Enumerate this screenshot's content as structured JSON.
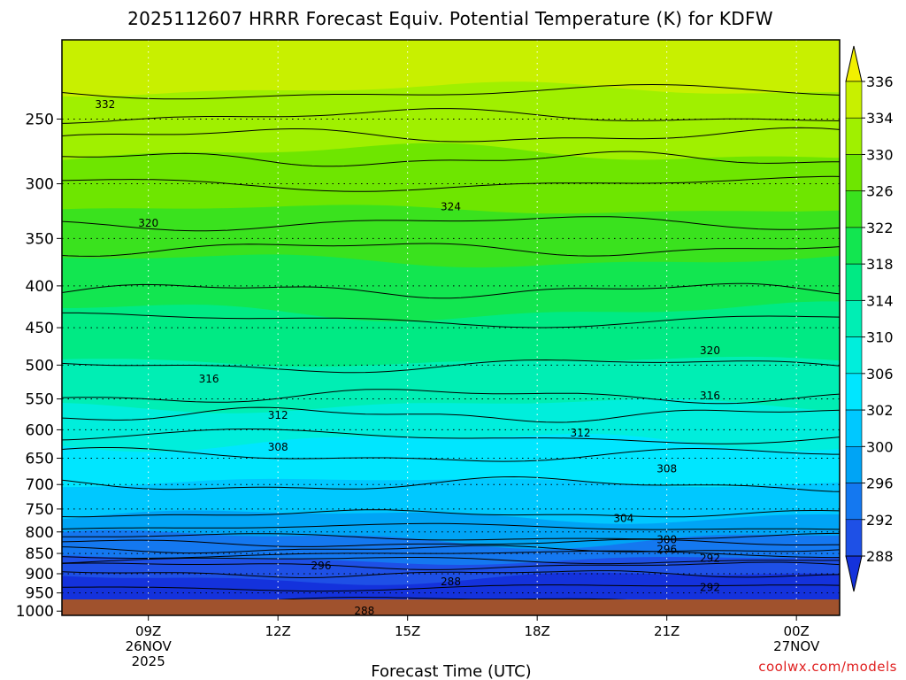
{
  "chart_data": {
    "type": "contour",
    "title": "2025112607 HRRR Forecast Equiv. Potential Temperature (K) for KDFW",
    "xlabel": "Forecast Time (UTC)",
    "ylabel": "",
    "credit": "coolwx.com/models",
    "y_axis": {
      "ticks": [
        250,
        300,
        350,
        400,
        450,
        500,
        550,
        600,
        650,
        700,
        750,
        800,
        850,
        900,
        950,
        1000
      ],
      "tick_labels": [
        "250",
        "300",
        "350",
        "400",
        "450",
        "500",
        "550",
        "600",
        "650",
        "700",
        "750",
        "800",
        "850",
        "900",
        "950",
        "1000"
      ],
      "top": 200,
      "bottom": 1012,
      "scale": "log",
      "reversed": true
    },
    "x_axis": {
      "range_hours": [
        7,
        25
      ],
      "ticks": [
        {
          "hour": 9,
          "lines": [
            "09Z",
            "26NOV",
            "2025"
          ]
        },
        {
          "hour": 12,
          "lines": [
            "12Z"
          ]
        },
        {
          "hour": 15,
          "lines": [
            "15Z"
          ]
        },
        {
          "hour": 18,
          "lines": [
            "18Z"
          ]
        },
        {
          "hour": 21,
          "lines": [
            "21Z"
          ]
        },
        {
          "hour": 24,
          "lines": [
            "00Z",
            "27NOV"
          ]
        }
      ]
    },
    "colorbar": {
      "ticks": [
        "336",
        "334",
        "330",
        "326",
        "322",
        "318",
        "314",
        "310",
        "306",
        "302",
        "300",
        "296",
        "292",
        "288"
      ],
      "colors": [
        "#f2f000",
        "#c8f000",
        "#a0f000",
        "#6ee600",
        "#3ae21e",
        "#12e650",
        "#00ea84",
        "#00eeb4",
        "#00eedc",
        "#00e6ff",
        "#00c8ff",
        "#00a4f5",
        "#1478f0",
        "#1e50e6",
        "#1432dc"
      ]
    },
    "levels_shaded": [
      {
        "pressure": 210,
        "value": 336
      },
      {
        "pressure": 250,
        "value": 332
      },
      {
        "pressure": 300,
        "value": 326
      },
      {
        "pressure": 345,
        "value": 323
      },
      {
        "pressure": 400,
        "value": 320
      },
      {
        "pressure": 460,
        "value": 317
      },
      {
        "pressure": 530,
        "value": 315
      },
      {
        "pressure": 590,
        "value": 312
      },
      {
        "pressure": 650,
        "value": 309
      },
      {
        "pressure": 740,
        "value": 307
      },
      {
        "pressure": 790,
        "value": 303
      },
      {
        "pressure": 840,
        "value": 298
      },
      {
        "pressure": 890,
        "value": 294
      },
      {
        "pressure": 930,
        "value": 291
      },
      {
        "pressure": 970,
        "value": 289
      }
    ],
    "contour_labels": [
      {
        "text": "332",
        "hour": 8.0,
        "pressure": 240
      },
      {
        "text": "324",
        "hour": 16.0,
        "pressure": 320
      },
      {
        "text": "320",
        "hour": 9.0,
        "pressure": 335
      },
      {
        "text": "320",
        "hour": 22.0,
        "pressure": 480
      },
      {
        "text": "316",
        "hour": 10.4,
        "pressure": 520
      },
      {
        "text": "316",
        "hour": 22.0,
        "pressure": 545
      },
      {
        "text": "312",
        "hour": 12.0,
        "pressure": 576
      },
      {
        "text": "312",
        "hour": 19.0,
        "pressure": 605
      },
      {
        "text": "308",
        "hour": 12.0,
        "pressure": 630
      },
      {
        "text": "308",
        "hour": 21.0,
        "pressure": 670
      },
      {
        "text": "304",
        "hour": 20.0,
        "pressure": 770
      },
      {
        "text": "300",
        "hour": 21.0,
        "pressure": 818
      },
      {
        "text": "296",
        "hour": 21.0,
        "pressure": 840
      },
      {
        "text": "296",
        "hour": 13.0,
        "pressure": 880
      },
      {
        "text": "292",
        "hour": 22.0,
        "pressure": 862
      },
      {
        "text": "292",
        "hour": 22.0,
        "pressure": 935
      },
      {
        "text": "288",
        "hour": 16.0,
        "pressure": 920
      },
      {
        "text": "288",
        "hour": 14.0,
        "pressure": 1000
      }
    ]
  }
}
